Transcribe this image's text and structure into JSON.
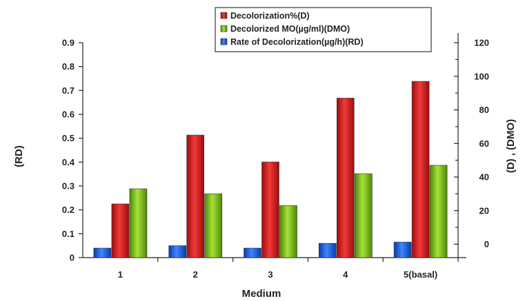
{
  "chart_data": {
    "type": "bar",
    "categories": [
      "1",
      "2",
      "3",
      "4",
      "5(basal)"
    ],
    "series": [
      {
        "name": "Rate of Decolorization(µg/h)(RD)",
        "axis": "left",
        "color": "#1f5fd6",
        "values": [
          0.04,
          0.05,
          0.04,
          0.06,
          0.065
        ]
      },
      {
        "name": "Decolorization%(D)",
        "axis": "right",
        "color": "#d81e1e",
        "values": [
          24,
          65,
          49,
          87,
          97
        ]
      },
      {
        "name": "Decolorized MO(µg/ml)(DMO)",
        "axis": "right",
        "color": "#7ec21a",
        "values": [
          33,
          30,
          23,
          42,
          47
        ]
      }
    ],
    "legend_order": [
      1,
      2,
      0
    ],
    "xlabel": "Medium",
    "ylabel_left": "(RD)",
    "ylabel_right": "(D) , (DMO)",
    "ylim_left": [
      0,
      0.9
    ],
    "yticks_left": [
      "0",
      "0.1",
      "0.2",
      "0.3",
      "0.4",
      "0.5",
      "0.6",
      "0.7",
      "0.8",
      "0.9"
    ],
    "ylim_right": [
      -8,
      120
    ],
    "yticks_right": [
      "0",
      "20",
      "40",
      "60",
      "80",
      "100",
      "120"
    ],
    "legend_position": "top-center",
    "grid": false
  }
}
